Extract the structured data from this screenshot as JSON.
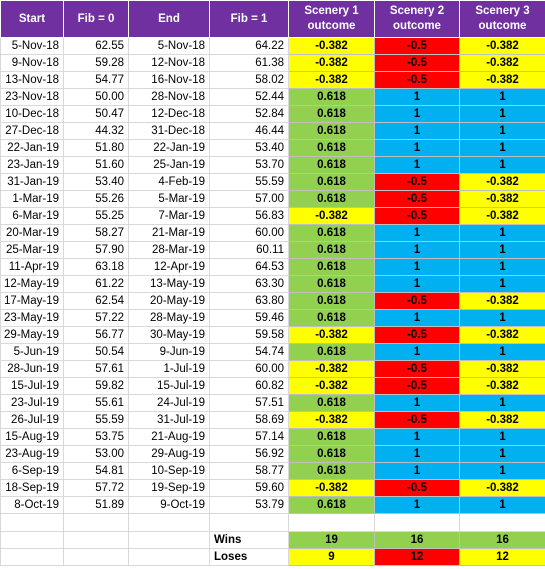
{
  "headers": {
    "start": "Start",
    "fib0": "Fib = 0",
    "end": "End",
    "fib1": "Fib = 1",
    "s1_line1": "Scenery 1",
    "s1_line2": "outcome",
    "s2_line1": "Scenery 2",
    "s2_line2": "outcome",
    "s3_line1": "Scenery 3",
    "s3_line2": "outcome"
  },
  "colors": {
    "header": "#7030a0",
    "green": "#92d050",
    "yellow": "#ffff00",
    "red": "#ff0000",
    "blue": "#00b0f0"
  },
  "rows": [
    {
      "start": "5-Nov-18",
      "fib0": "62.55",
      "end": "5-Nov-18",
      "fib1": "64.22",
      "s1": "-0.382",
      "s2": "-0.5",
      "s3": "-0.382"
    },
    {
      "start": "9-Nov-18",
      "fib0": "59.28",
      "end": "12-Nov-18",
      "fib1": "61.38",
      "s1": "-0.382",
      "s2": "-0.5",
      "s3": "-0.382"
    },
    {
      "start": "13-Nov-18",
      "fib0": "54.77",
      "end": "16-Nov-18",
      "fib1": "58.02",
      "s1": "-0.382",
      "s2": "-0.5",
      "s3": "-0.382"
    },
    {
      "start": "23-Nov-18",
      "fib0": "50.00",
      "end": "28-Nov-18",
      "fib1": "52.44",
      "s1": "0.618",
      "s2": "1",
      "s3": "1"
    },
    {
      "start": "10-Dec-18",
      "fib0": "50.47",
      "end": "12-Dec-18",
      "fib1": "52.84",
      "s1": "0.618",
      "s2": "1",
      "s3": "1"
    },
    {
      "start": "27-Dec-18",
      "fib0": "44.32",
      "end": "31-Dec-18",
      "fib1": "46.44",
      "s1": "0.618",
      "s2": "1",
      "s3": "1"
    },
    {
      "start": "22-Jan-19",
      "fib0": "51.80",
      "end": "22-Jan-19",
      "fib1": "53.40",
      "s1": "0.618",
      "s2": "1",
      "s3": "1"
    },
    {
      "start": "23-Jan-19",
      "fib0": "51.60",
      "end": "25-Jan-19",
      "fib1": "53.70",
      "s1": "0.618",
      "s2": "1",
      "s3": "1"
    },
    {
      "start": "31-Jan-19",
      "fib0": "53.40",
      "end": "4-Feb-19",
      "fib1": "55.59",
      "s1": "0.618",
      "s2": "-0.5",
      "s3": "-0.382"
    },
    {
      "start": "1-Mar-19",
      "fib0": "55.26",
      "end": "5-Mar-19",
      "fib1": "57.00",
      "s1": "0.618",
      "s2": "-0.5",
      "s3": "-0.382"
    },
    {
      "start": "6-Mar-19",
      "fib0": "55.25",
      "end": "7-Mar-19",
      "fib1": "56.83",
      "s1": "-0.382",
      "s2": "-0.5",
      "s3": "-0.382"
    },
    {
      "start": "20-Mar-19",
      "fib0": "58.27",
      "end": "21-Mar-19",
      "fib1": "60.00",
      "s1": "0.618",
      "s2": "1",
      "s3": "1"
    },
    {
      "start": "25-Mar-19",
      "fib0": "57.90",
      "end": "28-Mar-19",
      "fib1": "60.11",
      "s1": "0.618",
      "s2": "1",
      "s3": "1"
    },
    {
      "start": "11-Apr-19",
      "fib0": "63.18",
      "end": "12-Apr-19",
      "fib1": "64.53",
      "s1": "0.618",
      "s2": "1",
      "s3": "1"
    },
    {
      "start": "12-May-19",
      "fib0": "61.22",
      "end": "13-May-19",
      "fib1": "63.30",
      "s1": "0.618",
      "s2": "1",
      "s3": "1"
    },
    {
      "start": "17-May-19",
      "fib0": "62.54",
      "end": "20-May-19",
      "fib1": "63.80",
      "s1": "0.618",
      "s2": "-0.5",
      "s3": "-0.382"
    },
    {
      "start": "23-May-19",
      "fib0": "57.22",
      "end": "28-May-19",
      "fib1": "59.46",
      "s1": "0.618",
      "s2": "1",
      "s3": "1"
    },
    {
      "start": "29-May-19",
      "fib0": "56.77",
      "end": "30-May-19",
      "fib1": "59.58",
      "s1": "-0.382",
      "s2": "-0.5",
      "s3": "-0.382"
    },
    {
      "start": "5-Jun-19",
      "fib0": "50.54",
      "end": "9-Jun-19",
      "fib1": "54.74",
      "s1": "0.618",
      "s2": "1",
      "s3": "1"
    },
    {
      "start": "28-Jun-19",
      "fib0": "57.61",
      "end": "1-Jul-19",
      "fib1": "60.00",
      "s1": "-0.382",
      "s2": "-0.5",
      "s3": "-0.382"
    },
    {
      "start": "15-Jul-19",
      "fib0": "59.82",
      "end": "15-Jul-19",
      "fib1": "60.82",
      "s1": "-0.382",
      "s2": "-0.5",
      "s3": "-0.382"
    },
    {
      "start": "23-Jul-19",
      "fib0": "55.61",
      "end": "24-Jul-19",
      "fib1": "57.51",
      "s1": "0.618",
      "s2": "1",
      "s3": "1"
    },
    {
      "start": "26-Jul-19",
      "fib0": "55.59",
      "end": "31-Jul-19",
      "fib1": "58.69",
      "s1": "-0.382",
      "s2": "-0.5",
      "s3": "-0.382"
    },
    {
      "start": "15-Aug-19",
      "fib0": "53.75",
      "end": "21-Aug-19",
      "fib1": "57.14",
      "s1": "0.618",
      "s2": "1",
      "s3": "1"
    },
    {
      "start": "23-Aug-19",
      "fib0": "53.00",
      "end": "29-Aug-19",
      "fib1": "56.92",
      "s1": "0.618",
      "s2": "1",
      "s3": "1"
    },
    {
      "start": "6-Sep-19",
      "fib0": "54.81",
      "end": "10-Sep-19",
      "fib1": "58.77",
      "s1": "0.618",
      "s2": "1",
      "s3": "1"
    },
    {
      "start": "18-Sep-19",
      "fib0": "57.72",
      "end": "19-Sep-19",
      "fib1": "59.60",
      "s1": "-0.382",
      "s2": "-0.5",
      "s3": "-0.382"
    },
    {
      "start": "8-Oct-19",
      "fib0": "51.89",
      "end": "9-Oct-19",
      "fib1": "53.79",
      "s1": "0.618",
      "s2": "1",
      "s3": "1"
    }
  ],
  "summary": {
    "wins_label": "Wins",
    "loses_label": "Loses",
    "wins": {
      "s1": "19",
      "s2": "16",
      "s3": "16"
    },
    "loses": {
      "s1": "9",
      "s2": "12",
      "s3": "12"
    }
  }
}
